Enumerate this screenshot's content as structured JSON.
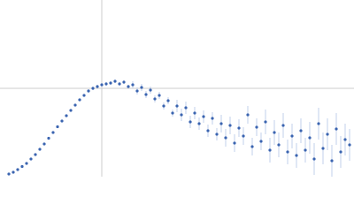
{
  "chart_data": {
    "type": "scatter",
    "x": [
      10,
      15,
      20,
      25,
      30,
      35,
      40,
      45,
      50,
      55,
      60,
      65,
      70,
      75,
      80,
      85,
      90,
      95,
      100,
      105,
      110,
      115,
      120,
      125,
      130,
      135,
      140,
      145,
      150,
      155,
      160,
      165,
      170,
      175,
      180,
      185,
      190,
      195,
      200,
      205,
      210,
      215,
      220,
      225,
      230,
      235,
      240,
      245,
      250,
      255,
      260,
      265,
      270,
      275,
      280,
      285,
      290,
      295,
      300,
      305,
      310,
      315,
      320,
      325,
      330,
      335,
      340,
      345,
      350,
      355,
      360,
      365,
      370,
      375,
      380,
      385,
      390,
      395
    ],
    "y": [
      3,
      5,
      8,
      11.5,
      15,
      20,
      25,
      31,
      37,
      43.5,
      50,
      56.5,
      63,
      69,
      75,
      81,
      87,
      92,
      97,
      100,
      102,
      104,
      105,
      106,
      108,
      105,
      107,
      102,
      104,
      97,
      101,
      93,
      98,
      88,
      92,
      80,
      86,
      72,
      80,
      70,
      78,
      62,
      72,
      60,
      68,
      52,
      66,
      48,
      60,
      44,
      58,
      38,
      55,
      46,
      70,
      34,
      56,
      40,
      62,
      30,
      50,
      36,
      58,
      28,
      46,
      24,
      52,
      30,
      44,
      20,
      60,
      32,
      48,
      18,
      54,
      28,
      42,
      36
    ],
    "errors": [
      0.5,
      0.5,
      0.5,
      0.5,
      0.5,
      0.5,
      0.5,
      0.5,
      0.5,
      0.5,
      0.5,
      0.5,
      0.5,
      0.5,
      0.5,
      0.5,
      0.5,
      0.5,
      2,
      2,
      2,
      2,
      2,
      2,
      2,
      2,
      2,
      2,
      4,
      4,
      4,
      4,
      4,
      4,
      4,
      4,
      4,
      4,
      7,
      7,
      7,
      7,
      7,
      7,
      7,
      7,
      7,
      7,
      10,
      10,
      10,
      10,
      10,
      10,
      10,
      10,
      10,
      10,
      14,
      14,
      14,
      14,
      14,
      14,
      14,
      14,
      14,
      14,
      18,
      18,
      18,
      18,
      18,
      18,
      18,
      18,
      18,
      18
    ],
    "color": "#3a64b0",
    "error_color": "#b3c4e6",
    "xlim": [
      0,
      400
    ],
    "ylim": [
      0,
      200
    ],
    "vlines": [
      115
    ],
    "hlines": [
      100
    ]
  }
}
